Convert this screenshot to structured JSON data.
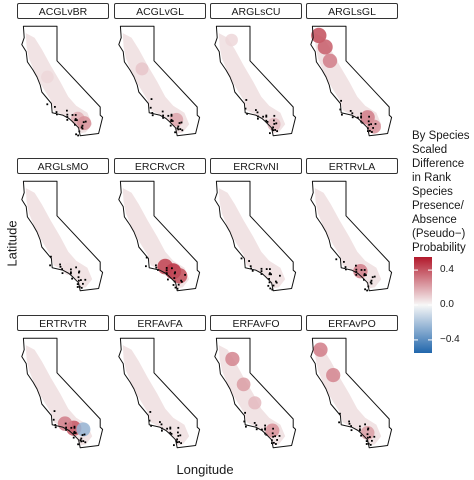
{
  "chart_data": {
    "type": "heatmap",
    "title": "",
    "xlabel": "Longitude",
    "ylabel": "Latitude",
    "panels": [
      {
        "title": "ACGLvBR",
        "hotspots": [
          {
            "lon": -117.4,
            "lat": 34.0,
            "value": 0.18
          },
          {
            "lon": -116.6,
            "lat": 33.6,
            "value": 0.25
          },
          {
            "lon": -121.2,
            "lat": 37.6,
            "value": 0.08
          }
        ]
      },
      {
        "title": "ACGLvGL",
        "hotspots": [
          {
            "lon": -117.2,
            "lat": 33.9,
            "value": 0.2
          },
          {
            "lon": -121.5,
            "lat": 38.3,
            "value": 0.12
          }
        ]
      },
      {
        "title": "ARGLsCU",
        "hotspots": [
          {
            "lon": -117.0,
            "lat": 33.5,
            "value": 0.15
          },
          {
            "lon": -122.3,
            "lat": 40.8,
            "value": 0.08
          }
        ]
      },
      {
        "title": "ARGLsGL",
        "hotspots": [
          {
            "lon": -123.4,
            "lat": 41.2,
            "value": 0.42
          },
          {
            "lon": -122.6,
            "lat": 40.2,
            "value": 0.38
          },
          {
            "lon": -122.0,
            "lat": 39.0,
            "value": 0.3
          },
          {
            "lon": -117.3,
            "lat": 34.1,
            "value": 0.3
          },
          {
            "lon": -116.5,
            "lat": 33.3,
            "value": 0.25
          }
        ]
      },
      {
        "title": "ARGLsMO",
        "hotspots": [
          {
            "lon": -118.5,
            "lat": 34.4,
            "value": 0.06
          }
        ]
      },
      {
        "title": "ERCRvCR",
        "hotspots": [
          {
            "lon": -117.6,
            "lat": 34.2,
            "value": 0.5
          },
          {
            "lon": -118.6,
            "lat": 34.6,
            "value": 0.45
          },
          {
            "lon": -116.8,
            "lat": 33.8,
            "value": 0.42
          }
        ]
      },
      {
        "title": "ERCRvNI",
        "hotspots": [
          {
            "lon": -117.2,
            "lat": 34.0,
            "value": 0.05
          }
        ]
      },
      {
        "title": "ERTRvLA",
        "hotspots": [
          {
            "lon": -118.2,
            "lat": 34.2,
            "value": 0.3
          }
        ]
      },
      {
        "title": "ERTRvTR",
        "hotspots": [
          {
            "lon": -117.9,
            "lat": 34.2,
            "value": 0.4
          },
          {
            "lon": -119.0,
            "lat": 34.6,
            "value": 0.3
          },
          {
            "lon": -116.7,
            "lat": 34.1,
            "value": -0.25
          }
        ]
      },
      {
        "title": "ERFAvFA",
        "hotspots": [
          {
            "lon": -117.2,
            "lat": 34.0,
            "value": 0.05
          }
        ]
      },
      {
        "title": "ERFAvFO",
        "hotspots": [
          {
            "lon": -122.2,
            "lat": 40.2,
            "value": 0.28
          },
          {
            "lon": -120.8,
            "lat": 38.0,
            "value": 0.22
          },
          {
            "lon": -119.4,
            "lat": 36.4,
            "value": 0.15
          },
          {
            "lon": -117.2,
            "lat": 34.0,
            "value": 0.25
          }
        ]
      },
      {
        "title": "ERFAvPO",
        "hotspots": [
          {
            "lon": -123.2,
            "lat": 41.0,
            "value": 0.3
          },
          {
            "lon": -121.6,
            "lat": 38.8,
            "value": 0.28
          },
          {
            "lon": -117.3,
            "lat": 33.8,
            "value": 0.22
          }
        ]
      }
    ],
    "legend": {
      "title": "By Species\nScaled\nDifference\nin Rank\nSpecies\nPresence/\nAbsence\n(Pseudo−)\nProbability",
      "ticks": [
        "0.4",
        "0.0",
        "−0.4"
      ],
      "tick_values": [
        0.4,
        0.0,
        -0.4
      ],
      "range": [
        -0.55,
        0.55
      ],
      "colors": {
        "low": "#2166ac",
        "mid": "#f7f7f7",
        "high": "#b2182b"
      },
      "placement": "right"
    },
    "grid": false
  }
}
